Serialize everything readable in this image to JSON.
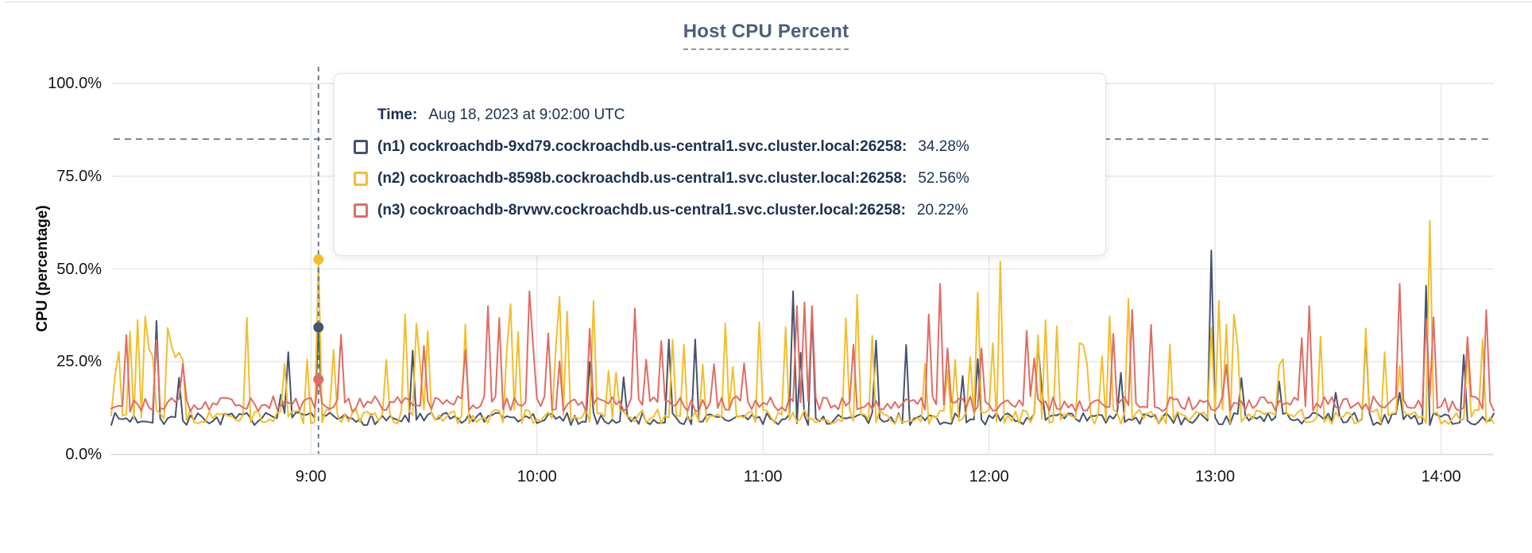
{
  "header": {
    "title": "Host CPU Percent"
  },
  "y_axis": {
    "label": "CPU (percentage)",
    "ticks": [
      "100.0%",
      "75.0%",
      "50.0%",
      "25.0%",
      "0.0%"
    ]
  },
  "x_axis": {
    "ticks": [
      "9:00",
      "10:00",
      "11:00",
      "12:00",
      "13:00",
      "14:00"
    ]
  },
  "tooltip": {
    "time_label": "Time:",
    "time_value": "Aug 18, 2023 at 9:02:00 UTC",
    "rows": [
      {
        "icon": "square-outline-icon",
        "color": "#45536E",
        "name": "(n1) cockroachdb-9xd79.cockroachdb.us-central1.svc.cluster.local:26258:",
        "value": "34.28%"
      },
      {
        "icon": "square-outline-icon",
        "color": "#F2BE2D",
        "name": "(n2) cockroachdb-8598b.cockroachdb.us-central1.svc.cluster.local:26258:",
        "value": "52.56%"
      },
      {
        "icon": "square-outline-icon",
        "color": "#E06C64",
        "name": "(n3) cockroachdb-8rvwv.cockroachdb.us-central1.svc.cluster.local:26258:",
        "value": "20.22%"
      }
    ]
  },
  "chart_data": {
    "type": "line",
    "title": "Host CPU Percent",
    "xlabel": "",
    "ylabel": "CPU (percentage)",
    "ylim": [
      0,
      100
    ],
    "ytick_values": [
      100,
      75,
      50,
      25,
      0
    ],
    "ytick_labels": [
      "100.0%",
      "75.0%",
      "50.0%",
      "25.0%",
      "0.0%"
    ],
    "xtick_minutes": [
      540,
      600,
      660,
      720,
      780,
      840
    ],
    "xtick_labels": [
      "9:00",
      "10:00",
      "11:00",
      "12:00",
      "13:00",
      "14:00"
    ],
    "time_start_minutes": 487,
    "time_end_minutes": 854,
    "grid": true,
    "legend_position": "tooltip",
    "threshold_line": {
      "value": 85,
      "style": "dashed",
      "color": "#5c7080"
    },
    "hover": {
      "minute": 542,
      "time_label": "Aug 18, 2023 at 9:02:00 UTC",
      "line_color": "#5c7080"
    },
    "series": [
      {
        "id": "n1",
        "label": "(n1) cockroachdb-9xd79.cockroachdb.us-central1.svc.cluster.local:26258",
        "color": "#45536E",
        "hover_value": 34.28,
        "gen": {
          "seed": 7,
          "baseline": 9.6,
          "noise": 1.7,
          "spike_chance": 0.06,
          "spike_min": 7,
          "spike_max": 24,
          "floor": 7.5
        },
        "peaks": [
          [
            499,
            36
          ],
          [
            542,
            34.28
          ],
          [
            567,
            28
          ],
          [
            642,
            31
          ],
          [
            668,
            44
          ],
          [
            673,
            38.5
          ],
          [
            733,
            30
          ],
          [
            755,
            22
          ],
          [
            779,
            55
          ],
          [
            836,
            45.5
          ]
        ]
      },
      {
        "id": "n2",
        "label": "(n2) cockroachdb-8598b.cockroachdb.us-central1.svc.cluster.local:26258",
        "color": "#F2BE2D",
        "hover_value": 52.56,
        "gen": {
          "seed": 13,
          "baseline": 10.2,
          "noise": 2.0,
          "spike_chance": 0.2,
          "spike_min": 12,
          "spike_max": 33,
          "floor": 8
        },
        "peaks": [
          [
            542,
            52.56
          ],
          [
            723,
            52
          ],
          [
            744,
            30
          ],
          [
            757,
            42
          ],
          [
            820,
            34
          ],
          [
            837,
            63
          ]
        ]
      },
      {
        "id": "n3",
        "label": "(n3) cockroachdb-8rvwv.cockroachdb.us-central1.svc.cluster.local:26258",
        "color": "#E06C64",
        "hover_value": 20.22,
        "gen": {
          "seed": 29,
          "baseline": 13.6,
          "noise": 2.1,
          "spike_chance": 0.09,
          "spike_min": 8,
          "spike_max": 26,
          "floor": 10.5
        },
        "peaks": [
          [
            542,
            20.22
          ],
          [
            587,
            40
          ],
          [
            598,
            44
          ],
          [
            669,
            40
          ],
          [
            671,
            41
          ],
          [
            673,
            40
          ],
          [
            707,
            46
          ],
          [
            758,
            39
          ],
          [
            805,
            40
          ],
          [
            829,
            46
          ],
          [
            838,
            37
          ]
        ]
      }
    ]
  }
}
